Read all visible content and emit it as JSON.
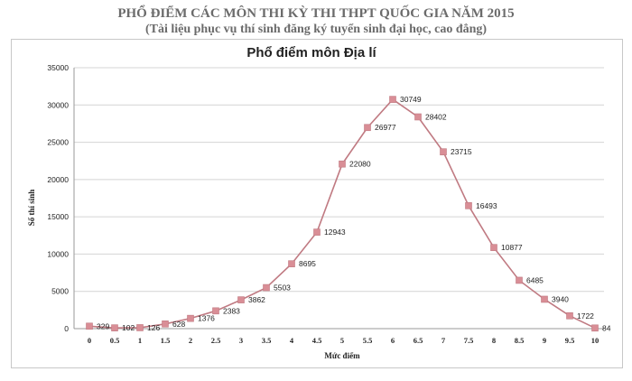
{
  "header": {
    "line1": "PHỔ ĐIỂM CÁC MÔN THI KỲ THI THPT QUỐC GIA NĂM 2015",
    "line2": "(Tài liệu phục vụ thí sinh đăng ký tuyển sinh đại học, cao đẳng)"
  },
  "chart_data": {
    "type": "line",
    "title": "Phổ điểm môn Địa lí",
    "xlabel": "Mức điểm",
    "ylabel": "Số thí sinh",
    "x_ticks": [
      "0",
      "0.5",
      "1",
      "1.5",
      "2",
      "2.5",
      "3",
      "3.5",
      "4",
      "4.5",
      "5",
      "5.5",
      "6",
      "6.5",
      "7",
      "7.5",
      "8",
      "8.5",
      "9",
      "9.5",
      "10"
    ],
    "x": [
      0,
      0.5,
      1,
      1.5,
      2,
      2.5,
      3,
      3.5,
      4,
      4.5,
      5,
      5.5,
      6,
      6.5,
      7,
      7.5,
      8,
      8.5,
      9,
      9.5,
      10
    ],
    "values": [
      329,
      102,
      126,
      628,
      1376,
      2383,
      3862,
      5503,
      8695,
      12943,
      22080,
      26977,
      30749,
      28402,
      23715,
      16493,
      10877,
      6485,
      3940,
      1722,
      84
    ],
    "ylim": [
      0,
      35000
    ],
    "y_ticks": [
      0,
      5000,
      10000,
      15000,
      20000,
      25000,
      30000,
      35000
    ],
    "grid": true,
    "legend": "none",
    "series_color": "#c07a82",
    "marker_color": "#d98e96"
  }
}
